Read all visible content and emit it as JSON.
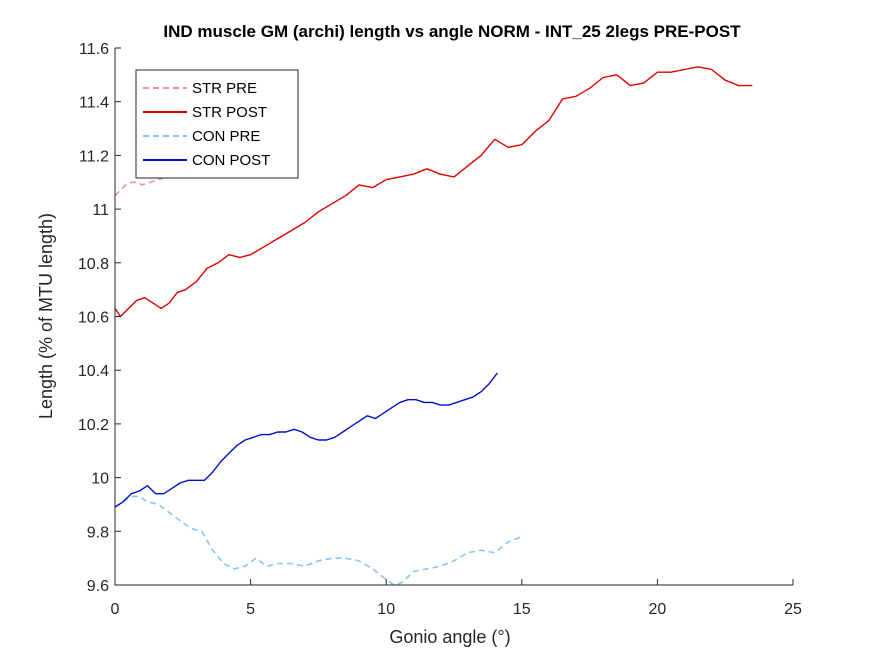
{
  "chart_data": {
    "type": "line",
    "title": "IND muscle GM (archi) length vs angle NORM - INT_25 2legs PRE-POST",
    "xlabel": "Gonio angle (°)",
    "ylabel": "Length (% of MTU length)",
    "xlim": [
      0,
      25
    ],
    "ylim": [
      9.6,
      11.6
    ],
    "xticks": [
      0,
      5,
      10,
      15,
      20,
      25
    ],
    "xtick_labels": [
      "0",
      "5",
      "10",
      "15",
      "20",
      "25"
    ],
    "yticks": [
      9.6,
      9.8,
      10,
      10.2,
      10.4,
      10.6,
      10.8,
      11,
      11.2,
      11.4,
      11.6
    ],
    "ytick_labels": [
      "9.6",
      "9.8",
      "10",
      "10.2",
      "10.4",
      "10.6",
      "10.8",
      "11",
      "11.2",
      "11.4",
      "11.6"
    ],
    "grid": false,
    "legend_position": "top-left",
    "series": [
      {
        "name": "STR PRE",
        "color": "#f08cb4",
        "dash": "dashed",
        "x": [
          0,
          0.2,
          0.4,
          0.6,
          0.8,
          1.0,
          1.3,
          1.6,
          1.9
        ],
        "y": [
          11.05,
          11.07,
          11.09,
          11.1,
          11.1,
          11.09,
          11.1,
          11.11,
          11.12
        ]
      },
      {
        "name": "STR POST",
        "color": "#e00000",
        "dash": "solid",
        "x": [
          0,
          0.2,
          0.5,
          0.8,
          1.1,
          1.4,
          1.7,
          2.0,
          2.3,
          2.6,
          3.0,
          3.4,
          3.8,
          4.2,
          4.6,
          5.0,
          5.5,
          6.0,
          6.5,
          7.0,
          7.5,
          8.0,
          8.5,
          9.0,
          9.5,
          10.0,
          10.5,
          11.0,
          11.5,
          12.0,
          12.5,
          13.0,
          13.5,
          14.0,
          14.5,
          15.0,
          15.5,
          16.0,
          16.5,
          17.0,
          17.5,
          18.0,
          18.5,
          19.0,
          19.5,
          20.0,
          20.5,
          21.0,
          21.5,
          22.0,
          22.5,
          23.0,
          23.5
        ],
        "y": [
          10.63,
          10.6,
          10.63,
          10.66,
          10.67,
          10.65,
          10.63,
          10.65,
          10.69,
          10.7,
          10.73,
          10.78,
          10.8,
          10.83,
          10.82,
          10.83,
          10.86,
          10.89,
          10.92,
          10.95,
          10.99,
          11.02,
          11.05,
          11.09,
          11.08,
          11.11,
          11.12,
          11.13,
          11.15,
          11.13,
          11.12,
          11.16,
          11.2,
          11.26,
          11.23,
          11.24,
          11.29,
          11.33,
          11.41,
          11.42,
          11.45,
          11.49,
          11.5,
          11.46,
          11.47,
          11.51,
          11.51,
          11.52,
          11.53,
          11.52,
          11.48,
          11.46,
          11.46
        ]
      },
      {
        "name": "CON PRE",
        "color": "#87c8f0",
        "dash": "dashed",
        "x": [
          0,
          0.3,
          0.6,
          0.9,
          1.2,
          1.6,
          2.0,
          2.4,
          2.8,
          3.2,
          3.6,
          4.0,
          4.4,
          4.8,
          5.2,
          5.6,
          6.0,
          6.5,
          7.0,
          7.5,
          8.0,
          8.5,
          9.0,
          9.5,
          10.0,
          10.3,
          10.6,
          11.0,
          11.5,
          12.0,
          12.5,
          13.0,
          13.5,
          14.0,
          14.5,
          15.0
        ],
        "y": [
          9.89,
          9.91,
          9.93,
          9.93,
          9.91,
          9.9,
          9.87,
          9.84,
          9.81,
          9.8,
          9.73,
          9.68,
          9.66,
          9.67,
          9.7,
          9.67,
          9.68,
          9.68,
          9.67,
          9.69,
          9.7,
          9.7,
          9.69,
          9.66,
          9.62,
          9.6,
          9.61,
          9.65,
          9.66,
          9.67,
          9.69,
          9.72,
          9.73,
          9.72,
          9.76,
          9.78
        ]
      },
      {
        "name": "CON POST",
        "color": "#0010c8",
        "dash": "solid",
        "x": [
          0,
          0.3,
          0.6,
          0.9,
          1.2,
          1.5,
          1.8,
          2.1,
          2.4,
          2.7,
          3.0,
          3.3,
          3.6,
          3.9,
          4.2,
          4.5,
          4.8,
          5.1,
          5.4,
          5.7,
          6.0,
          6.3,
          6.6,
          6.9,
          7.2,
          7.5,
          7.8,
          8.1,
          8.4,
          8.7,
          9.0,
          9.3,
          9.6,
          9.9,
          10.2,
          10.5,
          10.8,
          11.1,
          11.4,
          11.7,
          12.0,
          12.3,
          12.6,
          12.9,
          13.2,
          13.5,
          13.8,
          14.1
        ],
        "y": [
          9.89,
          9.91,
          9.94,
          9.95,
          9.97,
          9.94,
          9.94,
          9.96,
          9.98,
          9.99,
          9.99,
          9.99,
          10.02,
          10.06,
          10.09,
          10.12,
          10.14,
          10.15,
          10.16,
          10.16,
          10.17,
          10.17,
          10.18,
          10.17,
          10.15,
          10.14,
          10.14,
          10.15,
          10.17,
          10.19,
          10.21,
          10.23,
          10.22,
          10.24,
          10.26,
          10.28,
          10.29,
          10.29,
          10.28,
          10.28,
          10.27,
          10.27,
          10.28,
          10.29,
          10.3,
          10.32,
          10.35,
          10.39
        ]
      }
    ]
  }
}
